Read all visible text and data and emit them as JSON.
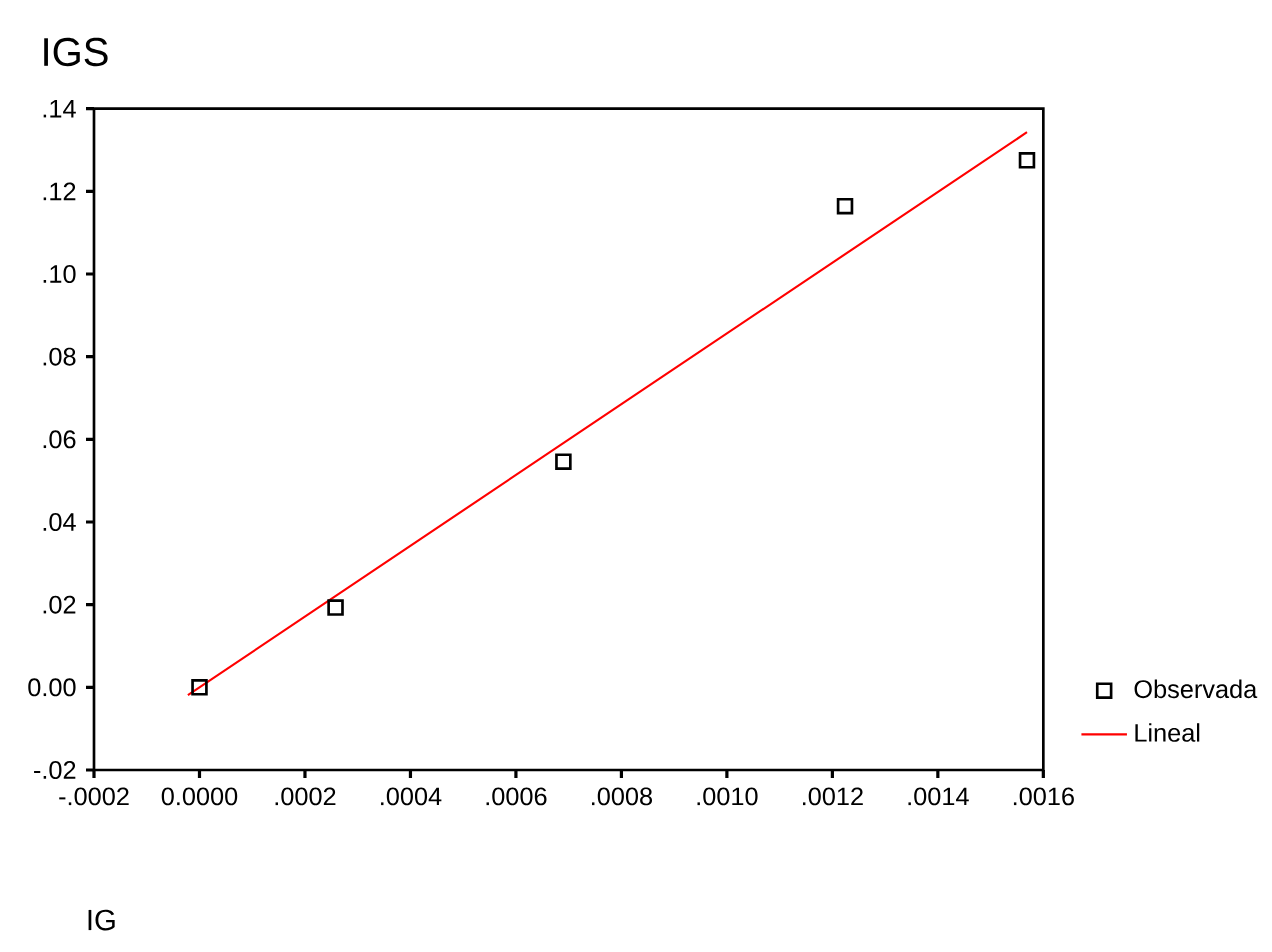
{
  "chart_data": {
    "type": "scatter",
    "ylabel": "IGS",
    "xlabel": "IG",
    "xlim": [
      -0.0002,
      0.0016
    ],
    "ylim": [
      -0.02,
      0.14
    ],
    "xticks": [
      {
        "value": -0.0002,
        "label": "-.0002"
      },
      {
        "value": 0,
        "label": "0.0000"
      },
      {
        "value": 0.0002,
        "label": ".0002"
      },
      {
        "value": 0.0004,
        "label": ".0004"
      },
      {
        "value": 0.0006,
        "label": ".0006"
      },
      {
        "value": 0.0008,
        "label": ".0008"
      },
      {
        "value": 0.001,
        "label": ".0010"
      },
      {
        "value": 0.0012,
        "label": ".0012"
      },
      {
        "value": 0.0014,
        "label": ".0014"
      },
      {
        "value": 0.0016,
        "label": ".0016"
      }
    ],
    "yticks": [
      {
        "value": -0.02,
        "label": "-.02"
      },
      {
        "value": 0,
        "label": "0.00"
      },
      {
        "value": 0.02,
        "label": ".02"
      },
      {
        "value": 0.04,
        "label": ".04"
      },
      {
        "value": 0.06,
        "label": ".06"
      },
      {
        "value": 0.08,
        "label": ".08"
      },
      {
        "value": 0.1,
        "label": ".10"
      },
      {
        "value": 0.12,
        "label": ".12"
      },
      {
        "value": 0.14,
        "label": ".14"
      }
    ],
    "legend": "bottom right",
    "grid": false,
    "series": [
      {
        "name": "Observada",
        "type": "scatter",
        "color": "#000000",
        "marker": "square",
        "x": [
          0,
          0.000258,
          0.00069,
          0.001224,
          0.001569
        ],
        "values": [
          0,
          0.0193,
          0.0546,
          0.1164,
          0.1275
        ]
      },
      {
        "name": "Lineal",
        "type": "line",
        "color": "#ff0000",
        "marker": "none",
        "line_style": "solid",
        "x": [
          -2.2e-05,
          0.0008,
          0.001569
        ],
        "values": [
          -0.0019,
          0.0685,
          0.1343
        ]
      }
    ]
  }
}
